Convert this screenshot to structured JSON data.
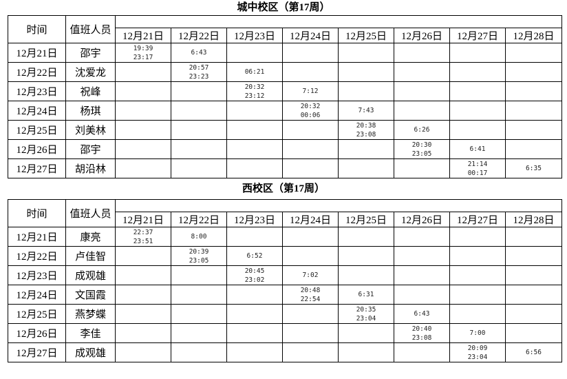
{
  "campuses": [
    {
      "title": "城中校区（第17周）",
      "header_time": "时间",
      "header_person": "值班人员",
      "dates": [
        "12月21日",
        "12月22日",
        "12月23日",
        "12月24日",
        "12月25日",
        "12月26日",
        "12月27日",
        "12月28日"
      ],
      "rows": [
        {
          "date": "12月21日",
          "person": "邵宇",
          "cells": [
            "19:39\n23:17",
            "6:43",
            "",
            "",
            "",
            "",
            "",
            ""
          ]
        },
        {
          "date": "12月22日",
          "person": "沈爱龙",
          "cells": [
            "",
            "20:57\n23:23",
            "06:21",
            "",
            "",
            "",
            "",
            ""
          ]
        },
        {
          "date": "12月23日",
          "person": "祝峰",
          "cells": [
            "",
            "",
            "20:32\n23:12",
            "7:12",
            "",
            "",
            "",
            ""
          ]
        },
        {
          "date": "12月24日",
          "person": "杨琪",
          "cells": [
            "",
            "",
            "",
            "20:32\n00:06",
            "7:43",
            "",
            "",
            ""
          ]
        },
        {
          "date": "12月25日",
          "person": "刘美林",
          "cells": [
            "",
            "",
            "",
            "",
            "20:38\n23:08",
            "6:26",
            "",
            ""
          ]
        },
        {
          "date": "12月26日",
          "person": "邵宇",
          "cells": [
            "",
            "",
            "",
            "",
            "",
            "20:30\n23:05",
            "6:41",
            ""
          ]
        },
        {
          "date": "12月27日",
          "person": "胡沿林",
          "cells": [
            "",
            "",
            "",
            "",
            "",
            "",
            "21:14\n00:17",
            "6:35"
          ]
        }
      ]
    },
    {
      "title": "西校区（第17周）",
      "header_time": "时间",
      "header_person": "值班人员",
      "dates": [
        "12月21日",
        "12月22日",
        "12月23日",
        "12月24日",
        "12月25日",
        "12月26日",
        "12月27日",
        "12月28日"
      ],
      "rows": [
        {
          "date": "12月21日",
          "person": "康亮",
          "cells": [
            "22:37\n23:51",
            "8:00",
            "",
            "",
            "",
            "",
            "",
            ""
          ]
        },
        {
          "date": "12月22日",
          "person": "卢佳智",
          "cells": [
            "",
            "20:39\n23:05",
            "6:52",
            "",
            "",
            "",
            "",
            ""
          ]
        },
        {
          "date": "12月23日",
          "person": "成观雄",
          "cells": [
            "",
            "",
            "20:45\n23:02",
            "7:02",
            "",
            "",
            "",
            ""
          ]
        },
        {
          "date": "12月24日",
          "person": "文国霞",
          "cells": [
            "",
            "",
            "",
            "20:48\n22:54",
            "6:31",
            "",
            "",
            ""
          ]
        },
        {
          "date": "12月25日",
          "person": "燕梦蝶",
          "cells": [
            "",
            "",
            "",
            "",
            "20:35\n23:04",
            "6:43",
            "",
            ""
          ]
        },
        {
          "date": "12月26日",
          "person": "李佳",
          "cells": [
            "",
            "",
            "",
            "",
            "",
            "20:40\n23:08",
            "7:00",
            ""
          ]
        },
        {
          "date": "12月27日",
          "person": "成观雄",
          "cells": [
            "",
            "",
            "",
            "",
            "",
            "",
            "20:09\n23:04",
            "6:56"
          ]
        }
      ]
    }
  ]
}
